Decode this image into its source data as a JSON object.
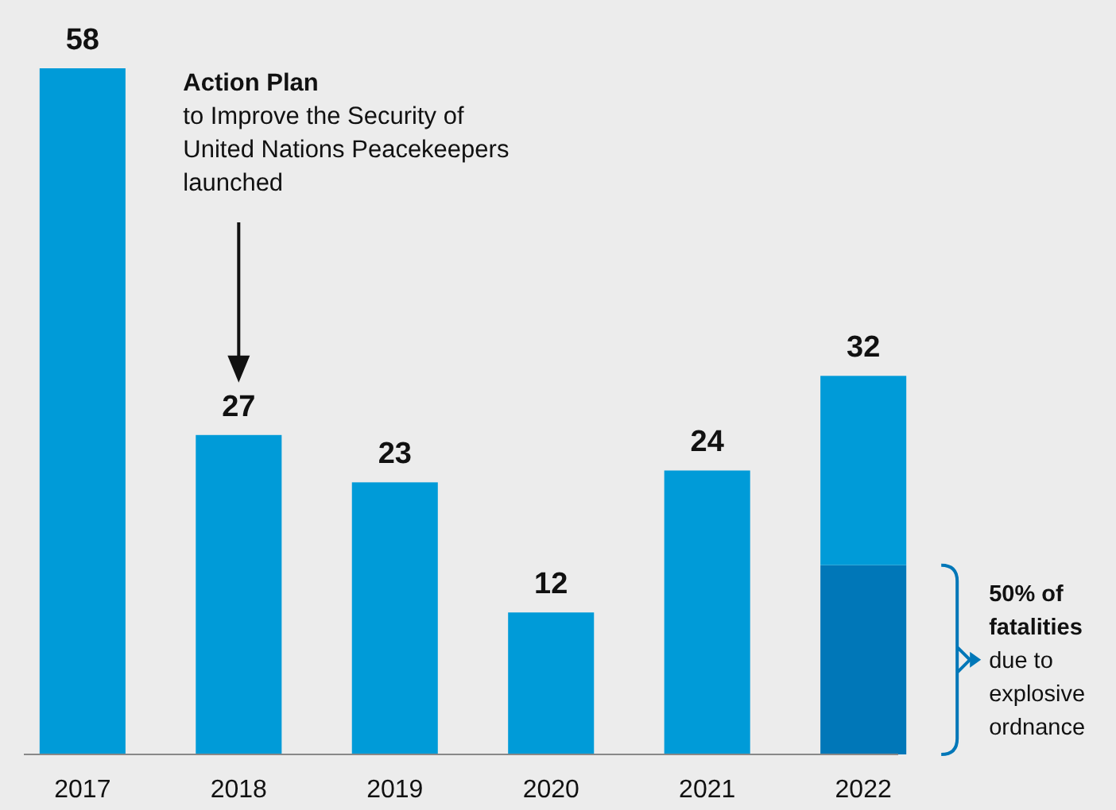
{
  "chart_data": {
    "type": "bar",
    "stacked": true,
    "categories": [
      "2017",
      "2018",
      "2019",
      "2020",
      "2021",
      "2022"
    ],
    "series": [
      {
        "colors": [
          "#009bd8",
          "#009bd8",
          "#009bd8",
          "#009bd8",
          "#009bd8",
          "#0077b8"
        ],
        "values": [
          58,
          27,
          23,
          12,
          24,
          16
        ],
        "value_labels": [
          "58",
          "27",
          "23",
          "12",
          "24",
          null
        ]
      },
      {
        "color": "#009bd8",
        "values": [
          null,
          null,
          null,
          null,
          null,
          16
        ]
      }
    ],
    "totals": [
      null,
      null,
      null,
      null,
      null,
      "32"
    ],
    "annotations": [
      "Action Plan\nto Improve the Security of\nUnited Nations Peacekeepers\nlaunched",
      "50% of\nfatalities\ndue to\nexplosive\nordnance"
    ]
  }
}
